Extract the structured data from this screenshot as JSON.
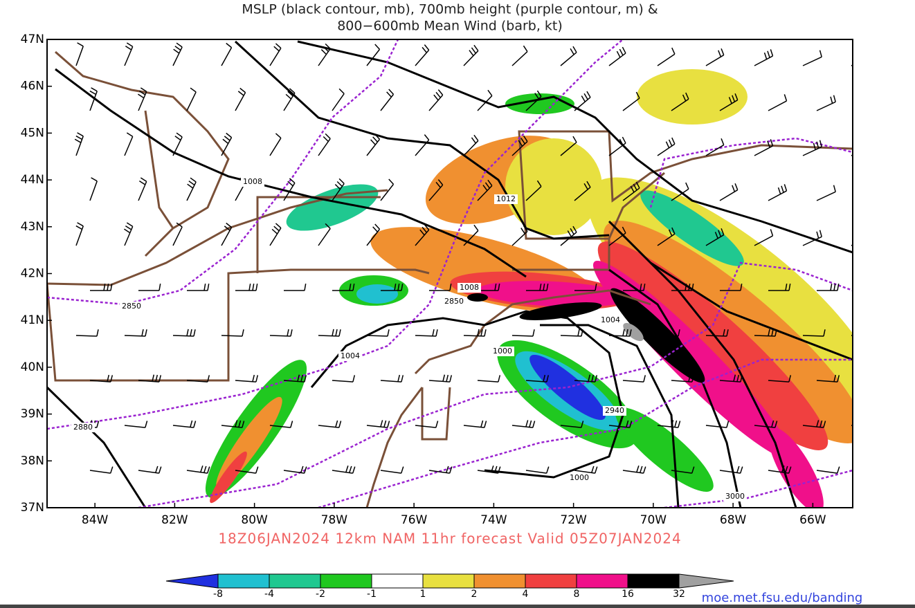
{
  "map": {
    "title_lines": [
      "MSLP (black contour, mb), 700mb height (purple contour, m) &",
      "800−600mb Mean Wind (barb, kt)"
    ],
    "xlim": [
      -85.2,
      -65
    ],
    "ylim": [
      37,
      47
    ],
    "xticks": [
      {
        "value": -84,
        "label": "84W"
      },
      {
        "value": -82,
        "label": "82W"
      },
      {
        "value": -80,
        "label": "80W"
      },
      {
        "value": -78,
        "label": "78W"
      },
      {
        "value": -76,
        "label": "76W"
      },
      {
        "value": -74,
        "label": "74W"
      },
      {
        "value": -72,
        "label": "72W"
      },
      {
        "value": -70,
        "label": "70W"
      },
      {
        "value": -68,
        "label": "68W"
      },
      {
        "value": -66,
        "label": "66W"
      }
    ],
    "yticks": [
      {
        "value": 37,
        "label": "37N"
      },
      {
        "value": 38,
        "label": "38N"
      },
      {
        "value": 39,
        "label": "39N"
      },
      {
        "value": 40,
        "label": "40N"
      },
      {
        "value": 41,
        "label": "41N"
      },
      {
        "value": 42,
        "label": "42N"
      },
      {
        "value": 43,
        "label": "43N"
      },
      {
        "value": 44,
        "label": "44N"
      },
      {
        "value": 45,
        "label": "45N"
      },
      {
        "value": 46,
        "label": "46N"
      },
      {
        "value": 47,
        "label": "47N"
      }
    ],
    "contour_labels": [
      "1008",
      "1012",
      "1008",
      "2850",
      "2850",
      "1004",
      "1000",
      "1004",
      "2940",
      "1000",
      "2880",
      "3000"
    ],
    "subtitle": "18Z06JAN2024 12km NAM 11hr forecast Valid 05Z07JAN2024",
    "colorbar": {
      "colors": [
        "#2030e0",
        "#20c0d0",
        "#20c890",
        "#20c820",
        "#ffffff",
        "#e8e040",
        "#f09030",
        "#f04040",
        "#f0108a",
        "#000000",
        "#a0a0a0"
      ],
      "ticks": [
        -8,
        -4,
        -2,
        -1,
        1,
        2,
        4,
        8,
        16,
        32
      ]
    },
    "url": "moe.met.fsu.edu/banding"
  }
}
